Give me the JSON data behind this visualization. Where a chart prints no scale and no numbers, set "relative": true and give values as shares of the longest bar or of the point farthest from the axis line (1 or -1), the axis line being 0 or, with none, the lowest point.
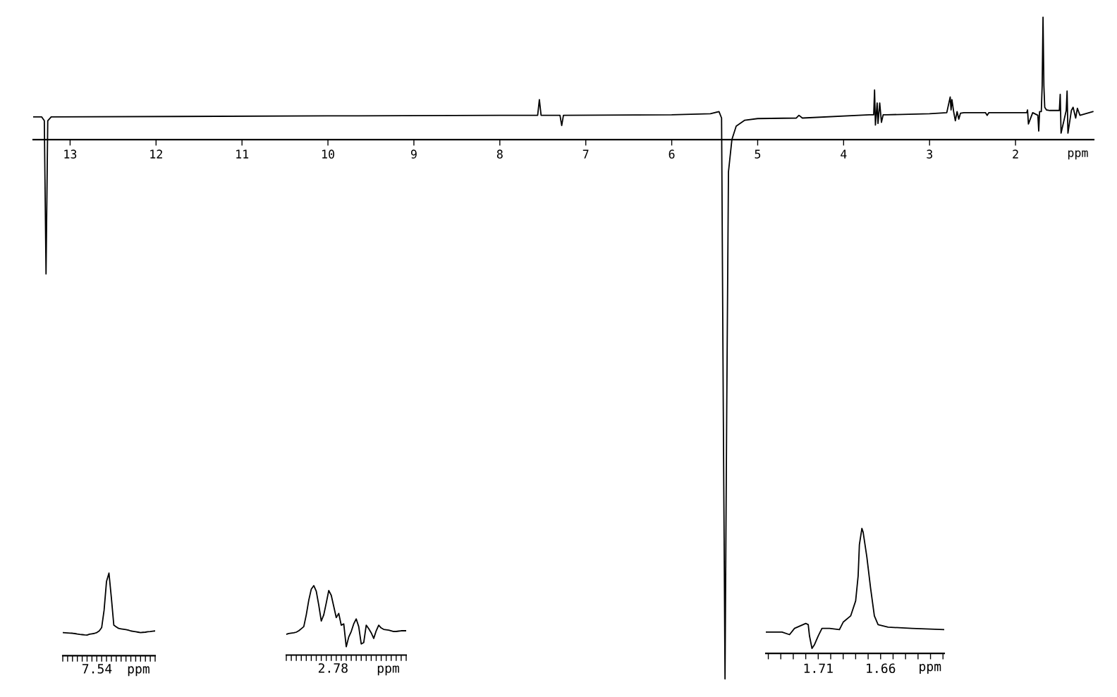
{
  "chart_data": [
    {
      "type": "line",
      "relative": true,
      "xlabel": "ppm",
      "tick_labels": "x",
      "grid": false,
      "line_style": "solid",
      "marker": "none",
      "xlim": [
        13.43,
        1.09
      ],
      "xticks": [
        13,
        12,
        11,
        10,
        9,
        8,
        7,
        6,
        5,
        4,
        3,
        2
      ],
      "series": [
        {
          "color": "#000000",
          "x": [
            13.43,
            13.33,
            13.3,
            13.28,
            13.26,
            13.22,
            10,
            8,
            7.56,
            7.54,
            7.52,
            7.3,
            7.28,
            7.26,
            6,
            5.55,
            5.45,
            5.42,
            5.4,
            5.38,
            5.36,
            5.34,
            5.3,
            5.25,
            5.15,
            5.0,
            4.55,
            4.52,
            4.48,
            3.7,
            3.65,
            3.64,
            3.63,
            3.61,
            3.6,
            3.58,
            3.56,
            3.54,
            3.5,
            3.0,
            2.8,
            2.76,
            2.75,
            2.74,
            2.72,
            2.7,
            2.68,
            2.66,
            2.64,
            2.6,
            2.35,
            2.33,
            2.31,
            1.9,
            1.87,
            1.86,
            1.85,
            1.8,
            1.74,
            1.73,
            1.72,
            1.7,
            1.69,
            1.68,
            1.67,
            1.66,
            1.64,
            1.6,
            1.49,
            1.48,
            1.47,
            1.41,
            1.4,
            1.39,
            1.35,
            1.33,
            1.3,
            1.28,
            1.25,
            1.1
          ],
          "values": [
            0.042,
            0.042,
            0.035,
            -0.249,
            0.035,
            0.042,
            0.044,
            0.045,
            0.045,
            0.074,
            0.045,
            0.045,
            0.026,
            0.045,
            0.046,
            0.048,
            0.052,
            0.04,
            -0.5,
            -1.0,
            -0.5,
            -0.06,
            0.0,
            0.025,
            0.036,
            0.039,
            0.04,
            0.045,
            0.04,
            0.046,
            0.046,
            0.092,
            0.027,
            0.068,
            0.03,
            0.068,
            0.032,
            0.046,
            0.046,
            0.048,
            0.05,
            0.079,
            0.055,
            0.074,
            0.052,
            0.035,
            0.052,
            0.038,
            0.049,
            0.05,
            0.05,
            0.045,
            0.05,
            0.05,
            0.05,
            0.055,
            0.029,
            0.05,
            0.045,
            0.016,
            0.052,
            0.052,
            0.1,
            0.227,
            0.1,
            0.06,
            0.055,
            0.054,
            0.054,
            0.084,
            0.012,
            0.054,
            0.09,
            0.012,
            0.054,
            0.06,
            0.04,
            0.058,
            0.045,
            0.052
          ]
        }
      ]
    },
    {
      "type": "line",
      "relative": true,
      "xlabel": "ppm",
      "tick_labels": false,
      "grid": false,
      "line_style": "solid",
      "marker": "none",
      "annotations": [
        "7.54"
      ],
      "categories": [
        null,
        null,
        null,
        null,
        null,
        null,
        null,
        null,
        null,
        null,
        null,
        null,
        null,
        null,
        null,
        null,
        null,
        null,
        null,
        null,
        null,
        null,
        null,
        null,
        null,
        null,
        null,
        null,
        null,
        null,
        null,
        null,
        null,
        null,
        null,
        null,
        null,
        null,
        null
      ],
      "series": [
        {
          "color": "#000000",
          "values": [
            0.28,
            0.278,
            0.276,
            0.274,
            0.272,
            0.268,
            0.262,
            0.258,
            0.255,
            0.252,
            0.25,
            0.26,
            0.265,
            0.27,
            0.28,
            0.3,
            0.34,
            0.55,
            0.9,
            1.0,
            0.7,
            0.37,
            0.35,
            0.33,
            0.325,
            0.32,
            0.315,
            0.31,
            0.3,
            0.295,
            0.29,
            0.285,
            0.28,
            0.283,
            0.285,
            0.29,
            0.292,
            0.296,
            0.3
          ]
        }
      ]
    },
    {
      "type": "line",
      "relative": true,
      "xlabel": "ppm",
      "tick_labels": false,
      "grid": false,
      "line_style": "solid",
      "marker": "none",
      "annotations": [
        "2.78"
      ],
      "categories": [
        null,
        null,
        null,
        null,
        null,
        null,
        null,
        null,
        null,
        null,
        null,
        null,
        null,
        null,
        null,
        null,
        null,
        null,
        null,
        null,
        null,
        null,
        null,
        null,
        null,
        null,
        null,
        null,
        null,
        null,
        null,
        null,
        null,
        null,
        null,
        null,
        null,
        null,
        null,
        null,
        null,
        null,
        null,
        null,
        null,
        null,
        null,
        null,
        null
      ],
      "series": [
        {
          "color": "#000000",
          "values": [
            0.3,
            0.31,
            0.315,
            0.32,
            0.33,
            0.35,
            0.38,
            0.41,
            0.58,
            0.79,
            0.95,
            1.0,
            0.92,
            0.72,
            0.49,
            0.58,
            0.75,
            0.93,
            0.86,
            0.7,
            0.54,
            0.6,
            0.43,
            0.45,
            0.12,
            0.26,
            0.34,
            0.45,
            0.52,
            0.41,
            0.16,
            0.18,
            0.43,
            0.38,
            0.32,
            0.24,
            0.35,
            0.43,
            0.39,
            0.37,
            0.365,
            0.36,
            0.35,
            0.34,
            0.34,
            0.345,
            0.35,
            0.35,
            0.35
          ]
        }
      ]
    },
    {
      "type": "line",
      "relative": true,
      "xlabel": "ppm",
      "tick_labels": "x",
      "grid": false,
      "line_style": "solid",
      "marker": "none",
      "xlim": [
        1.752,
        1.609
      ],
      "xticks": [
        {
          "value": 1.75,
          "label": null
        },
        {
          "value": 1.74,
          "label": null
        },
        {
          "value": 1.73,
          "label": null
        },
        {
          "value": 1.72,
          "label": null
        },
        {
          "value": 1.71,
          "label": "1.71"
        },
        {
          "value": 1.7,
          "label": null
        },
        {
          "value": 1.69,
          "label": null
        },
        {
          "value": 1.68,
          "label": null
        },
        {
          "value": 1.67,
          "label": null
        },
        {
          "value": 1.66,
          "label": "1.66"
        },
        {
          "value": 1.65,
          "label": null
        },
        {
          "value": 1.64,
          "label": null
        },
        {
          "value": 1.63,
          "label": null
        },
        {
          "value": 1.62,
          "label": null
        },
        {
          "value": 1.61,
          "label": null
        }
      ],
      "series": [
        {
          "color": "#000000",
          "x": [
            1.752,
            1.739,
            1.733,
            1.729,
            1.72,
            1.718,
            1.717,
            1.715,
            1.713,
            1.71,
            1.707,
            1.701,
            1.693,
            1.69,
            1.684,
            1.68,
            1.678,
            1.677,
            1.675,
            1.674,
            1.671,
            1.668,
            1.665,
            1.662,
            1.654,
            1.635,
            1.609
          ],
          "values": [
            0.17,
            0.17,
            0.15,
            0.2,
            0.24,
            0.23,
            0.14,
            0.04,
            0.07,
            0.14,
            0.2,
            0.2,
            0.19,
            0.25,
            0.3,
            0.42,
            0.62,
            0.87,
            1.0,
            0.97,
            0.77,
            0.52,
            0.3,
            0.23,
            0.21,
            0.2,
            0.19
          ]
        }
      ]
    }
  ]
}
